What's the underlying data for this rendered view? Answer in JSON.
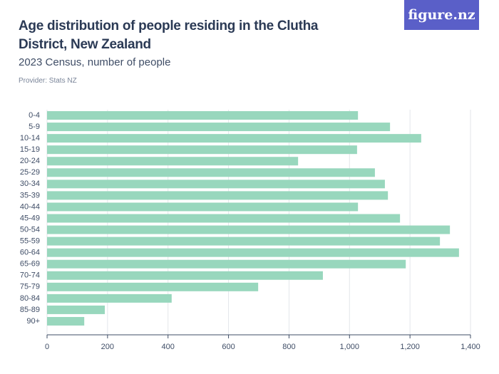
{
  "logo": "figure.nz",
  "chart_data": {
    "type": "bar",
    "orientation": "horizontal",
    "title": "Age distribution of people residing in the Clutha District, New Zealand",
    "subtitle": "2023 Census, number of people",
    "provider": "Provider: Stats NZ",
    "categories": [
      "0-4",
      "5-9",
      "10-14",
      "15-19",
      "20-24",
      "25-29",
      "30-34",
      "35-39",
      "40-44",
      "45-49",
      "50-54",
      "55-59",
      "60-64",
      "65-69",
      "70-74",
      "75-79",
      "80-84",
      "85-89",
      "90+"
    ],
    "values": [
      1028,
      1134,
      1237,
      1025,
      830,
      1084,
      1117,
      1127,
      1028,
      1167,
      1332,
      1299,
      1362,
      1186,
      912,
      698,
      412,
      191,
      123
    ],
    "color": "#98d7bd",
    "xlim": [
      0,
      1400
    ],
    "xticks": [
      0,
      200,
      400,
      600,
      800,
      {
        "value": 1000,
        "label": "1,000"
      },
      {
        "value": 1200,
        "label": "1,200"
      },
      {
        "value": 1400,
        "label": "1,400"
      }
    ],
    "grid": true
  }
}
